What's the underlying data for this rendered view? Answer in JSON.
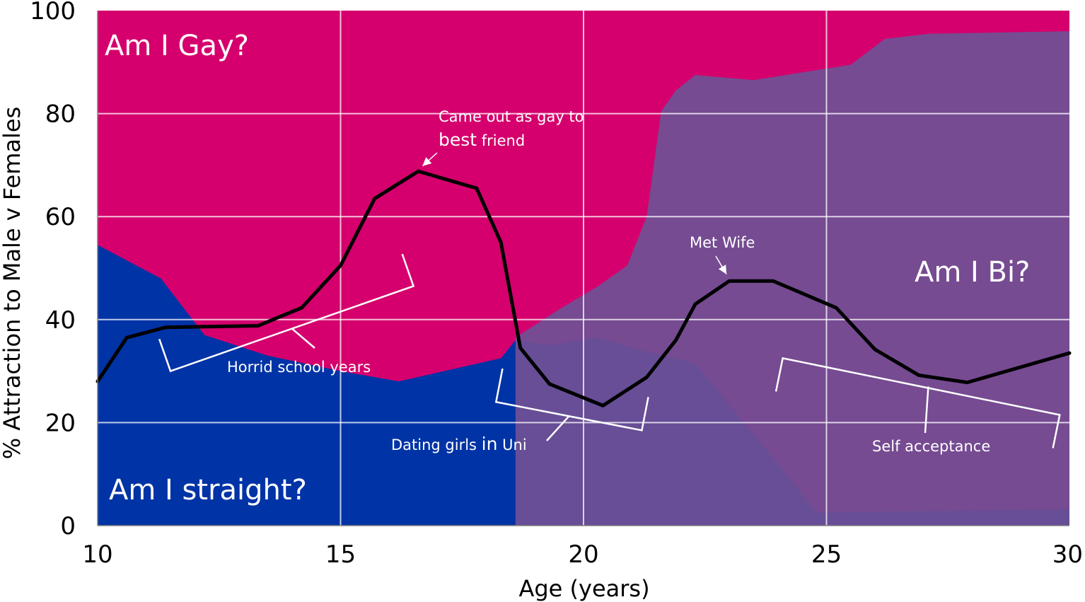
{
  "chart_data": {
    "type": "area",
    "xlabel": "Age (years)",
    "ylabel": "% Attraction to Male v Females",
    "xlim": [
      10,
      30
    ],
    "ylim": [
      0,
      100
    ],
    "x_ticks": [
      "10",
      "15",
      "20",
      "25",
      "30"
    ],
    "y_ticks": [
      "0",
      "20",
      "40",
      "60",
      "80",
      "100"
    ],
    "grid": true,
    "colors": {
      "gay": "#d5006d",
      "straight": "#0033a6",
      "bi": "#6f5194",
      "line": "#000000",
      "annotation": "#ffffff"
    },
    "regions": [
      {
        "label": "Am I Gay?",
        "color": "gay"
      },
      {
        "label": "Am I Bi?",
        "color": "bi"
      },
      {
        "label": "Am I straight?",
        "color": "straight"
      }
    ],
    "straight_area": {
      "x": [
        10,
        11.3,
        12.2,
        13.5,
        15,
        16.2,
        18.3,
        18.6,
        19.3,
        20.3,
        21.2,
        22.3,
        24,
        24.8,
        30
      ],
      "y": [
        54.5,
        48,
        37,
        33,
        30,
        28,
        32.5,
        36,
        35,
        36.5,
        34,
        31.5,
        12,
        2.5,
        3.2
      ]
    },
    "bi_area": {
      "x": [
        18.6,
        19.5,
        20.3,
        20.9,
        21.3,
        21.6,
        21.9,
        22.3,
        23.5,
        25.5,
        26.2,
        27.1,
        30
      ],
      "y": [
        36.5,
        42,
        46.5,
        50.5,
        60,
        80.5,
        84.5,
        87.5,
        86.5,
        89.5,
        94.5,
        95.5,
        96
      ]
    },
    "line_series": {
      "x": [
        10,
        10.6,
        11.4,
        13.3,
        14.2,
        15,
        15.7,
        16.6,
        17.8,
        18.3,
        18.7,
        19.3,
        20.4,
        21.3,
        21.9,
        22.3,
        23,
        23.9,
        25.2,
        26,
        26.9,
        27.9,
        30
      ],
      "y": [
        28,
        36.5,
        38.5,
        38.8,
        42.3,
        50.5,
        63.5,
        68.8,
        65.5,
        55,
        34.5,
        27.5,
        23.3,
        28.8,
        36,
        43,
        47.5,
        47.5,
        42.3,
        34.2,
        29.2,
        27.8,
        33.5
      ]
    },
    "annotations": [
      {
        "id": "came-out",
        "line1": "Came  out as gay to",
        "line2a": "best",
        "line2b": " friend",
        "arrow_to": [
          16.6,
          69
        ]
      },
      {
        "id": "met-wife",
        "text": "Met Wife",
        "arrow_to": [
          23,
          48
        ]
      },
      {
        "id": "horrid",
        "text": "Horrid school years",
        "bracket": {
          "x": [
            11.5,
            16.5
          ],
          "y": [
            30,
            46.5
          ]
        }
      },
      {
        "id": "dating",
        "textA": "Dating girls ",
        "textB": "in",
        "textC": " Uni",
        "bracket": {
          "x": [
            18.2,
            21.2
          ],
          "y": [
            24,
            18.5
          ]
        }
      },
      {
        "id": "self-acceptance",
        "text": "Self acceptance",
        "bracket": {
          "x": [
            24.1,
            29.8
          ],
          "y": [
            32.5,
            21.5
          ]
        }
      }
    ]
  }
}
